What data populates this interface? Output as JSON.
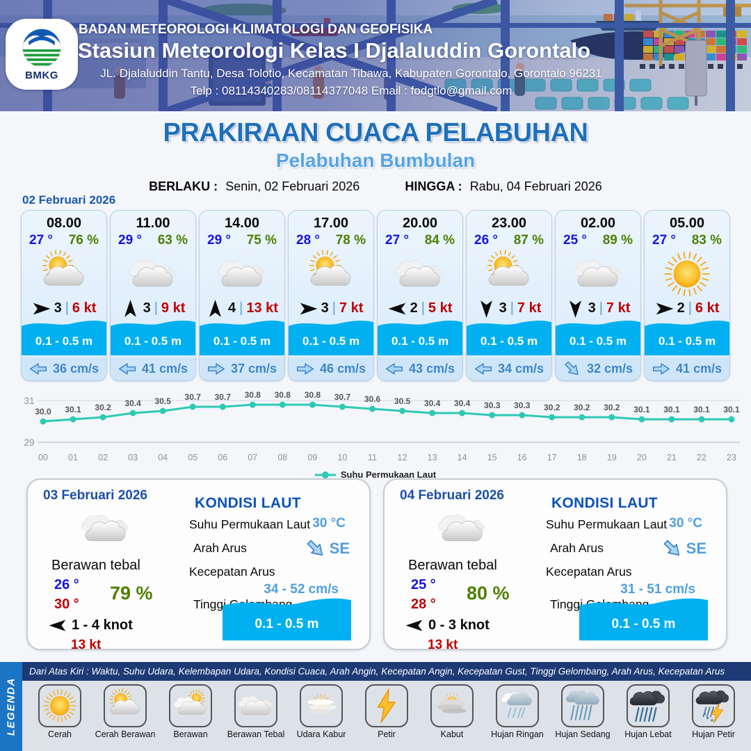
{
  "header": {
    "logo_text": "BMKG",
    "org": "BADAN METEOROLOGI KLIMATOLOGI DAN GEOFISIKA",
    "station": "Stasiun Meteorologi Kelas I Djalaluddin Gorontalo",
    "address": "JL. Djalaluddin Tantu, Desa Tolotio, Kecamatan Tibawa, Kabupaten Gorontalo, Gorontalo 96231",
    "contact": "Telp : 08114340283/08114377048 Email : fodgtlo@gmail.com"
  },
  "title": {
    "main": "PRAKIRAAN CUACA PELABUHAN",
    "subtitle": "Pelabuhan Bumbulan",
    "berlaku_label": "BERLAKU :",
    "berlaku_value": "Senin, 02 Februari 2026",
    "hingga_label": "HINGGA :",
    "hingga_value": "Rabu, 04 Februari 2026"
  },
  "hourly": {
    "date": "02 Februari 2026",
    "separator": "|",
    "cards": [
      {
        "time": "08.00",
        "temp": "27 °",
        "humidity": "76 %",
        "icon": "cerah-berawan",
        "wind_dir": "E",
        "wind": "3",
        "gust": "6 kt",
        "wave": "0.1 - 0.5 m",
        "current_dir": "W",
        "current": "36 cm/s"
      },
      {
        "time": "11.00",
        "temp": "29 °",
        "humidity": "63 %",
        "icon": "berawan-tebal",
        "wind_dir": "N",
        "wind": "3",
        "gust": "9 kt",
        "wave": "0.1 - 0.5 m",
        "current_dir": "W",
        "current": "41 cm/s"
      },
      {
        "time": "14.00",
        "temp": "29 °",
        "humidity": "75 %",
        "icon": "berawan-tebal",
        "wind_dir": "N",
        "wind": "4",
        "gust": "13 kt",
        "wave": "0.1 - 0.5 m",
        "current_dir": "E",
        "current": "37 cm/s"
      },
      {
        "time": "17.00",
        "temp": "28 °",
        "humidity": "78 %",
        "icon": "cerah-berawan",
        "wind_dir": "E",
        "wind": "3",
        "gust": "7 kt",
        "wave": "0.1 - 0.5 m",
        "current_dir": "E",
        "current": "46 cm/s"
      },
      {
        "time": "20.00",
        "temp": "27 °",
        "humidity": "84 %",
        "icon": "berawan-tebal",
        "wind_dir": "W",
        "wind": "2",
        "gust": "5 kt",
        "wave": "0.1 - 0.5 m",
        "current_dir": "W",
        "current": "43 cm/s"
      },
      {
        "time": "23.00",
        "temp": "26 °",
        "humidity": "87 %",
        "icon": "cerah-berawan",
        "wind_dir": "S",
        "wind": "3",
        "gust": "7 kt",
        "wave": "0.1 - 0.5 m",
        "current_dir": "W",
        "current": "34 cm/s"
      },
      {
        "time": "02.00",
        "temp": "25 °",
        "humidity": "89 %",
        "icon": "berawan-tebal",
        "wind_dir": "S",
        "wind": "3",
        "gust": "7 kt",
        "wave": "0.1 - 0.5 m",
        "current_dir": "SE",
        "current": "32 cm/s"
      },
      {
        "time": "05.00",
        "temp": "27 °",
        "humidity": "83 %",
        "icon": "cerah",
        "wind_dir": "E",
        "wind": "2",
        "gust": "6 kt",
        "wave": "0.1 - 0.5 m",
        "current_dir": "E",
        "current": "41 cm/s"
      }
    ]
  },
  "chart_data": {
    "type": "line",
    "x": [
      "00",
      "01",
      "02",
      "03",
      "04",
      "05",
      "06",
      "07",
      "08",
      "09",
      "10",
      "11",
      "12",
      "13",
      "14",
      "15",
      "16",
      "17",
      "18",
      "19",
      "20",
      "21",
      "22",
      "23"
    ],
    "series": [
      {
        "name": "Suhu Permukaan Laut",
        "values": [
          30.0,
          30.1,
          30.2,
          30.4,
          30.5,
          30.7,
          30.7,
          30.8,
          30.8,
          30.8,
          30.7,
          30.6,
          30.5,
          30.4,
          30.4,
          30.3,
          30.3,
          30.2,
          30.2,
          30.2,
          30.1,
          30.1,
          30.1,
          30.1
        ],
        "color": "#2ec9b5"
      }
    ],
    "ylim": [
      29,
      31
    ],
    "yticks": [
      31,
      29
    ],
    "grid": true,
    "legend_position": "bottom"
  },
  "daily": {
    "sea_labels": {
      "heading": "KONDISI LAUT",
      "sst": "Suhu Permukaan Laut",
      "arah": "Arah Arus",
      "kecepatan": "Kecepatan Arus",
      "gelombang": "Tinggi Gelombang"
    },
    "cards": [
      {
        "date": "03 Februari 2026",
        "condition": "Berawan tebal",
        "icon": "berawan-tebal",
        "temp_min": "26 °",
        "temp_max": "30 °",
        "humidity": "79 %",
        "wind_dir": "W",
        "wind_range": "1 - 4 knot",
        "gust": "13 kt",
        "sst": "30 °C",
        "current_dir": "SE",
        "current_dir_label": "SE",
        "current_range": "34 - 52 cm/s",
        "wave": "0.1 - 0.5 m"
      },
      {
        "date": "04 Februari 2026",
        "condition": "Berawan tebal",
        "icon": "berawan-tebal",
        "temp_min": "25 °",
        "temp_max": "28 °",
        "humidity": "80 %",
        "wind_dir": "W",
        "wind_range": "0 - 3 knot",
        "gust": "13 kt",
        "sst": "30 °C",
        "current_dir": "SE",
        "current_dir_label": "SE",
        "current_range": "31 - 51 cm/s",
        "wave": "0.1 - 0.5 m"
      }
    ]
  },
  "legend": {
    "strip": "LEGENDA",
    "description": "Dari Atas Kiri : Waktu, Suhu Udara, Kelembapan Udara, Kondisi Cuaca, Arah Angin, Kecepatan Angin, Kecepatan Gust, Tinggi Gelombang, Arah Arus, Kecepatan Arus",
    "items": [
      {
        "label": "Cerah",
        "icon": "cerah"
      },
      {
        "label": "Cerah Berawan",
        "icon": "cerah-berawan"
      },
      {
        "label": "Berawan",
        "icon": "berawan"
      },
      {
        "label": "Berawan Tebal",
        "icon": "berawan-tebal"
      },
      {
        "label": "Udara Kabur",
        "icon": "udara-kabur"
      },
      {
        "label": "Petir",
        "icon": "petir"
      },
      {
        "label": "Kabut",
        "icon": "kabut"
      },
      {
        "label": "Hujan Ringan",
        "icon": "hujan-ringan"
      },
      {
        "label": "Hujan Sedang",
        "icon": "hujan-sedang"
      },
      {
        "label": "Hujan Lebat",
        "icon": "hujan-lebat"
      },
      {
        "label": "Hujan Petir",
        "icon": "hujan-petir"
      }
    ]
  },
  "colors": {
    "wave_blue": "#00b0f0",
    "temp_blue": "#1414e0",
    "humidity_green": "#4e7f00",
    "gust_red": "#c00000",
    "title_blue": "#1f6fba",
    "subtitle_blue": "#55a3e3",
    "current_blue": "#3f86c8",
    "sea_value_blue": "#4f9fe0",
    "sst_line": "#2ec9b5",
    "legend_strip_blue": "#1b74c4",
    "legend_bar_navy": "#1d3a74"
  }
}
